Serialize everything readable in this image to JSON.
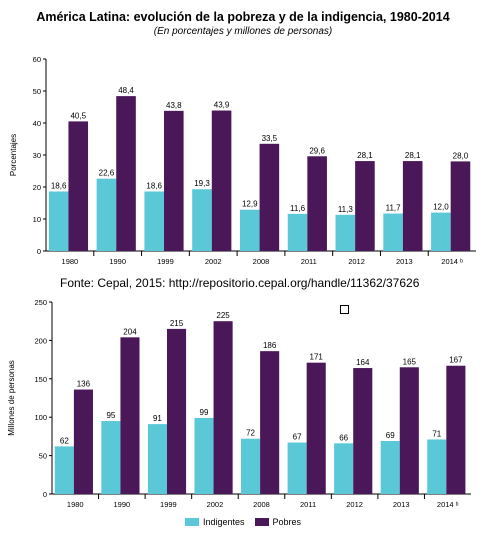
{
  "title": "América Latina: evolución de la pobreza y de la indigencia, 1980-2014",
  "subtitle": "(En porcentajes y millones de personas)",
  "source": "Fonte: Cepal, 2015: http://repositorio.cepal.org/handle/11362/37626",
  "colors": {
    "indigentes": "#5bc8d8",
    "pobres": "#4a1858"
  },
  "legend": {
    "indigentes": "Indigentes",
    "pobres": "Pobres"
  },
  "chart_data": [
    {
      "type": "bar",
      "ylabel": "Porcentajes",
      "ylim": [
        0,
        60
      ],
      "yticks": [
        0,
        10,
        20,
        30,
        40,
        50,
        60
      ],
      "categories": [
        "1980",
        "1990",
        "1999",
        "2002",
        "2008",
        "2011",
        "2012",
        "2013",
        "2014 ᵇ"
      ],
      "series": [
        {
          "name": "Indigentes",
          "values": [
            18.6,
            22.6,
            18.6,
            19.3,
            12.9,
            11.6,
            11.3,
            11.7,
            12.0
          ],
          "labels": [
            "18,6",
            "22,6",
            "18,6",
            "19,3",
            "12,9",
            "11,6",
            "11,3",
            "11,7",
            "12,0"
          ]
        },
        {
          "name": "Pobres",
          "values": [
            40.5,
            48.4,
            43.8,
            43.9,
            33.5,
            29.6,
            28.1,
            28.1,
            28.0
          ],
          "labels": [
            "40,5",
            "48,4",
            "43,8",
            "43,9",
            "33,5",
            "29,6",
            "28,1",
            "28,1",
            "28,0"
          ]
        }
      ]
    },
    {
      "type": "bar",
      "ylabel": "Millones de personas",
      "ylim": [
        0,
        250
      ],
      "yticks": [
        0,
        50,
        100,
        150,
        200,
        250
      ],
      "categories": [
        "1980",
        "1990",
        "1999",
        "2002",
        "2008",
        "2011",
        "2012",
        "2013",
        "2014 ᵇ"
      ],
      "series": [
        {
          "name": "Indigentes",
          "values": [
            62,
            95,
            91,
            99,
            72,
            67,
            66,
            69,
            71
          ],
          "labels": [
            "62",
            "95",
            "91",
            "99",
            "72",
            "67",
            "66",
            "69",
            "71"
          ]
        },
        {
          "name": "Pobres",
          "values": [
            136,
            204,
            215,
            225,
            186,
            171,
            164,
            165,
            167
          ],
          "labels": [
            "136",
            "204",
            "215",
            "225",
            "186",
            "171",
            "164",
            "165",
            "167"
          ]
        }
      ]
    }
  ]
}
